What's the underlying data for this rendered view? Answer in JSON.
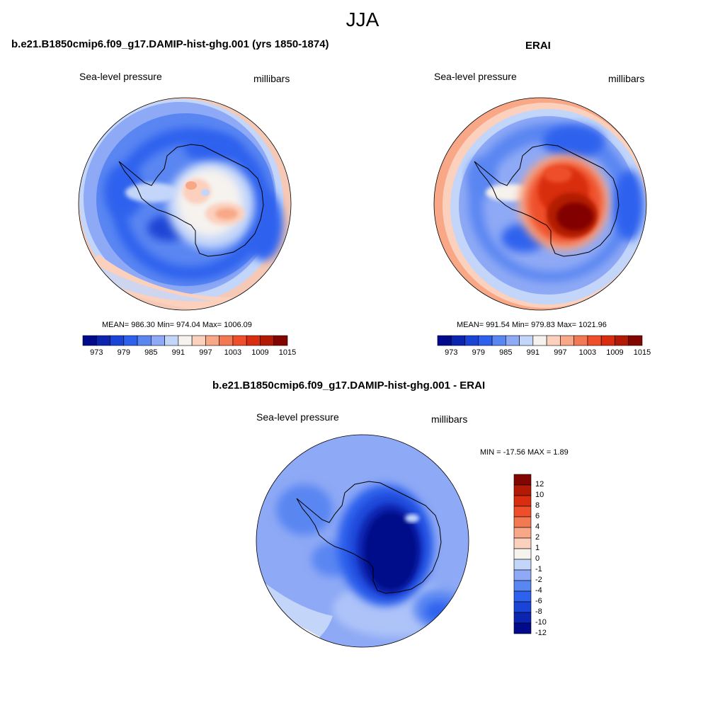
{
  "main_title": "JJA",
  "panels": {
    "model": {
      "title": "b.e21.B1850cmip6.f09_g17.DAMIP-hist-ghg.001 (yrs 1850-1874)",
      "left_label": "Sea-level pressure",
      "right_label": "millibars",
      "stats": "MEAN= 986.30  Min= 974.04  Max= 1006.09"
    },
    "obs": {
      "title": "ERAI",
      "left_label": "Sea-level pressure",
      "right_label": "millibars",
      "stats": "MEAN= 991.54  Min= 979.83  Max= 1021.96"
    },
    "diff": {
      "title": "b.e21.B1850cmip6.f09_g17.DAMIP-hist-ghg.001 - ERAI",
      "left_label": "Sea-level pressure",
      "right_label": "millibars",
      "stats": "MIN = -17.56 MAX =   1.89"
    }
  },
  "colorbars": {
    "abs": {
      "colors": [
        "#000a8a",
        "#0b25b0",
        "#1a44d6",
        "#2e62ee",
        "#5a86f2",
        "#8ea9f5",
        "#c3d6fa",
        "#f6f2ee",
        "#fbd0bd",
        "#f8a787",
        "#f37952",
        "#ee4f2a",
        "#d92d10",
        "#b21a06",
        "#820600"
      ],
      "labels": [
        "973",
        "979",
        "985",
        "991",
        "997",
        "1003",
        "1009",
        "1015"
      ]
    },
    "diff": {
      "colors": [
        "#820600",
        "#b21a06",
        "#d92d10",
        "#ee4f2a",
        "#f37952",
        "#f8a787",
        "#fbd0bd",
        "#f6f2ee",
        "#c3d6fa",
        "#8ea9f5",
        "#5a86f2",
        "#2e62ee",
        "#1a44d6",
        "#0b25b0",
        "#000a8a"
      ],
      "labels": [
        "12",
        "10",
        "8",
        "6",
        "4",
        "2",
        "1",
        "0",
        "-1",
        "-2",
        "-4",
        "-6",
        "-8",
        "-10",
        "-12"
      ]
    }
  }
}
